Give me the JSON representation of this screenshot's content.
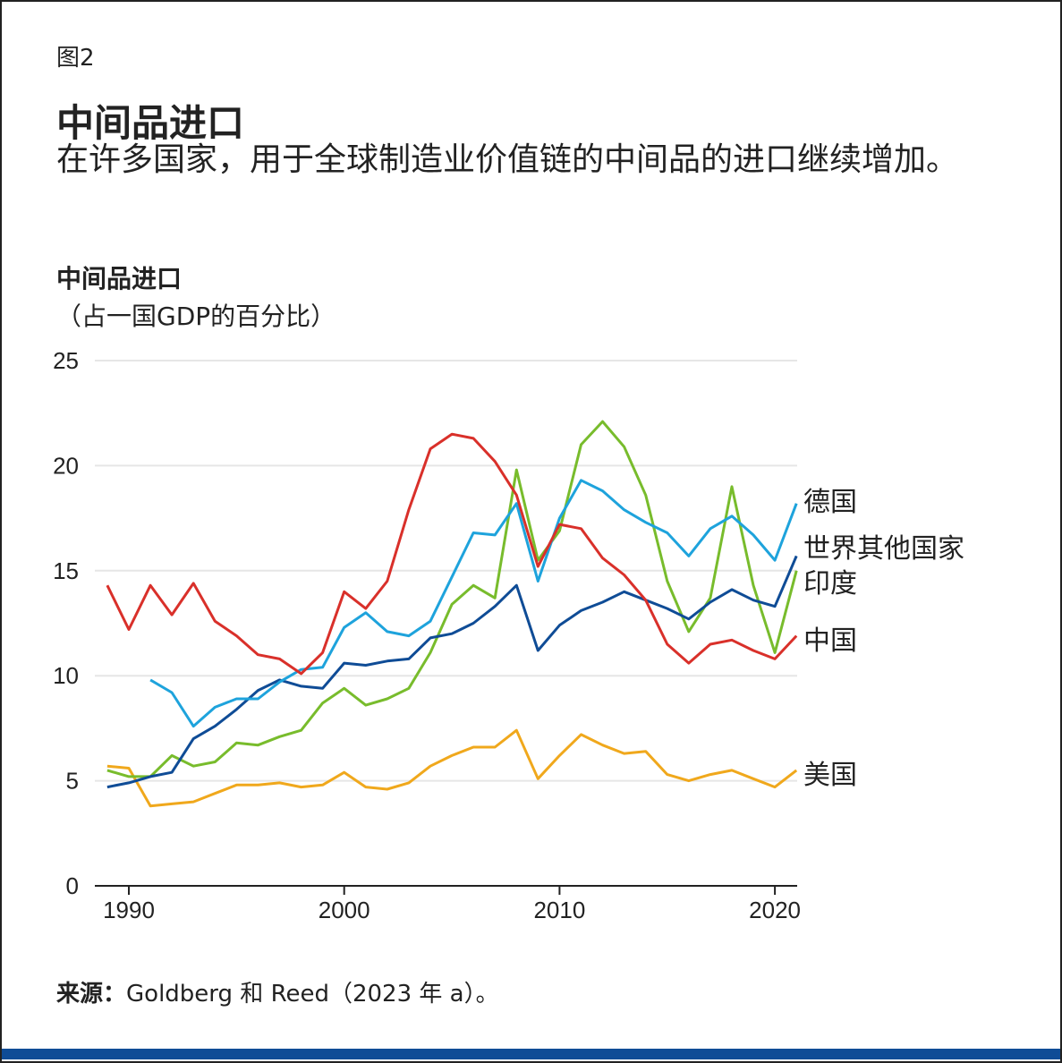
{
  "figure_label": "图2",
  "title": "中间品进口",
  "subtitle": "在许多国家，用于全球制造业价值链的中间品的进口继续增加。",
  "source_label": "来源：",
  "source_text": "Goldberg 和 Reed（2023 年 a）。",
  "chart_data": {
    "type": "line",
    "ylabel": "中间品进口",
    "yunit": "（占一国GDP的百分比）",
    "ylim": [
      0,
      25
    ],
    "yticks": [
      0,
      5,
      10,
      15,
      20,
      25
    ],
    "xlim": [
      1989,
      2021
    ],
    "xticks": [
      1990,
      2000,
      2010,
      2020
    ],
    "grid": "horizontal",
    "legend": "line-end labels right",
    "x": [
      1989,
      1990,
      1991,
      1992,
      1993,
      1994,
      1995,
      1996,
      1997,
      1998,
      1999,
      2000,
      2001,
      2002,
      2003,
      2004,
      2005,
      2006,
      2007,
      2008,
      2009,
      2010,
      2011,
      2012,
      2013,
      2014,
      2015,
      2016,
      2017,
      2018,
      2019,
      2020,
      2021
    ],
    "series": [
      {
        "name": "美国",
        "color": "#f0a81c",
        "values": [
          5.7,
          5.6,
          3.8,
          3.9,
          4.0,
          4.4,
          4.8,
          4.8,
          4.9,
          4.7,
          4.8,
          5.4,
          4.7,
          4.6,
          4.9,
          5.7,
          6.2,
          6.6,
          6.6,
          7.4,
          5.1,
          6.2,
          7.2,
          6.7,
          6.3,
          6.4,
          5.3,
          5.0,
          5.3,
          5.5,
          5.1,
          4.7,
          5.5
        ]
      },
      {
        "name": "印度",
        "color": "#78bc2c",
        "values": [
          5.5,
          5.2,
          5.2,
          6.2,
          5.7,
          5.9,
          6.8,
          6.7,
          7.1,
          7.4,
          8.7,
          9.4,
          8.6,
          8.9,
          9.4,
          11.1,
          13.4,
          14.3,
          13.7,
          19.8,
          15.5,
          16.9,
          21.0,
          22.1,
          20.9,
          18.6,
          14.5,
          12.1,
          13.7,
          19.0,
          14.3,
          11.1,
          15.0
        ]
      },
      {
        "name": "世界其他国家",
        "color": "#0f4c96",
        "values": [
          4.7,
          4.9,
          5.2,
          5.4,
          7.0,
          7.6,
          8.4,
          9.3,
          9.8,
          9.5,
          9.4,
          10.6,
          10.5,
          10.7,
          10.8,
          11.8,
          12.0,
          12.5,
          13.3,
          14.3,
          11.2,
          12.4,
          13.1,
          13.5,
          14.0,
          13.6,
          13.2,
          12.7,
          13.5,
          14.1,
          13.6,
          13.3,
          15.7
        ]
      },
      {
        "name": "德国",
        "color": "#1ea3dc",
        "values": [
          null,
          null,
          9.8,
          9.2,
          7.6,
          8.5,
          8.9,
          8.9,
          9.7,
          10.3,
          10.4,
          12.3,
          13.0,
          12.1,
          11.9,
          12.6,
          14.7,
          16.8,
          16.7,
          18.2,
          14.5,
          17.5,
          19.3,
          18.8,
          17.9,
          17.3,
          16.8,
          15.7,
          17.0,
          17.6,
          16.7,
          15.5,
          18.2
        ]
      },
      {
        "name": "中国",
        "color": "#d9302a",
        "values": [
          14.3,
          12.2,
          14.3,
          12.9,
          14.4,
          12.6,
          11.9,
          11.0,
          10.8,
          10.1,
          11.1,
          14.0,
          13.2,
          14.5,
          17.9,
          20.8,
          21.5,
          21.3,
          20.2,
          18.6,
          15.2,
          17.2,
          17.0,
          15.6,
          14.8,
          13.6,
          11.5,
          10.6,
          11.5,
          11.7,
          11.2,
          10.8,
          11.9
        ]
      }
    ]
  }
}
